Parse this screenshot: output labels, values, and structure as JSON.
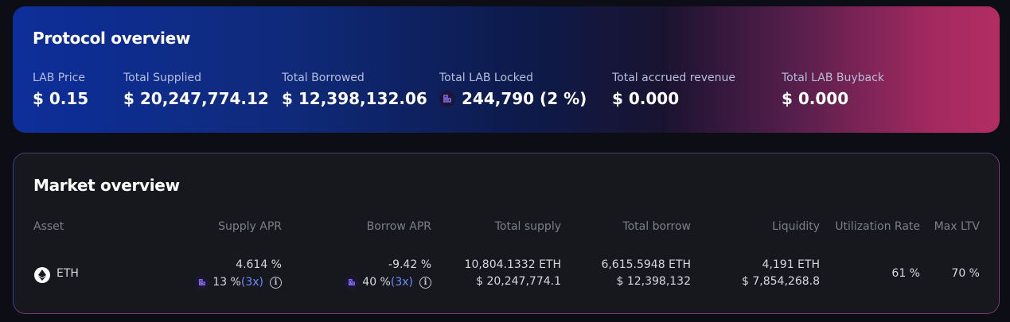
{
  "protocol": {
    "title": "Protocol overview",
    "stats": [
      {
        "label": "LAB Price",
        "value": "$ 0.15"
      },
      {
        "label": "Total Supplied",
        "value": "$ 20,247,774.12"
      },
      {
        "label": "Total Borrowed",
        "value": "$ 12,398,132.06"
      },
      {
        "label": "Total LAB Locked",
        "value": "244,790 (2 %)"
      },
      {
        "label": "Total accrued revenue",
        "value": "$ 0.000"
      },
      {
        "label": "Total LAB Buyback",
        "value": "$ 0.000"
      }
    ]
  },
  "market": {
    "title": "Market overview",
    "headers": {
      "asset": "Asset",
      "supply_apr": "Supply APR",
      "borrow_apr": "Borrow APR",
      "total_supply": "Total supply",
      "total_borrow": "Total borrow",
      "liquidity": "Liquidity",
      "utilization": "Utilization Rate",
      "max_ltv": "Max LTV"
    },
    "rows": [
      {
        "asset": "ETH",
        "asset_icon": "eth-icon",
        "supply_apr": "4.614 %",
        "supply_reward": "13 %",
        "supply_mult": "(3x)",
        "borrow_apr": "-9.42 %",
        "borrow_reward": "40 %",
        "borrow_mult": "(3x)",
        "total_supply": "10,804.1332 ETH",
        "total_supply_usd": "$ 20,247,774.1",
        "total_borrow": "6,615.5948 ETH",
        "total_borrow_usd": "$ 12,398,132",
        "liquidity": "4,191 ETH",
        "liquidity_usd": "$ 7,854,268.8",
        "utilization": "61 %",
        "max_ltv": "70 %"
      }
    ]
  },
  "colors": {
    "accent_blue": "#6b8cff",
    "gradient_start": "#0e2e9a",
    "gradient_end": "#b22d63"
  }
}
